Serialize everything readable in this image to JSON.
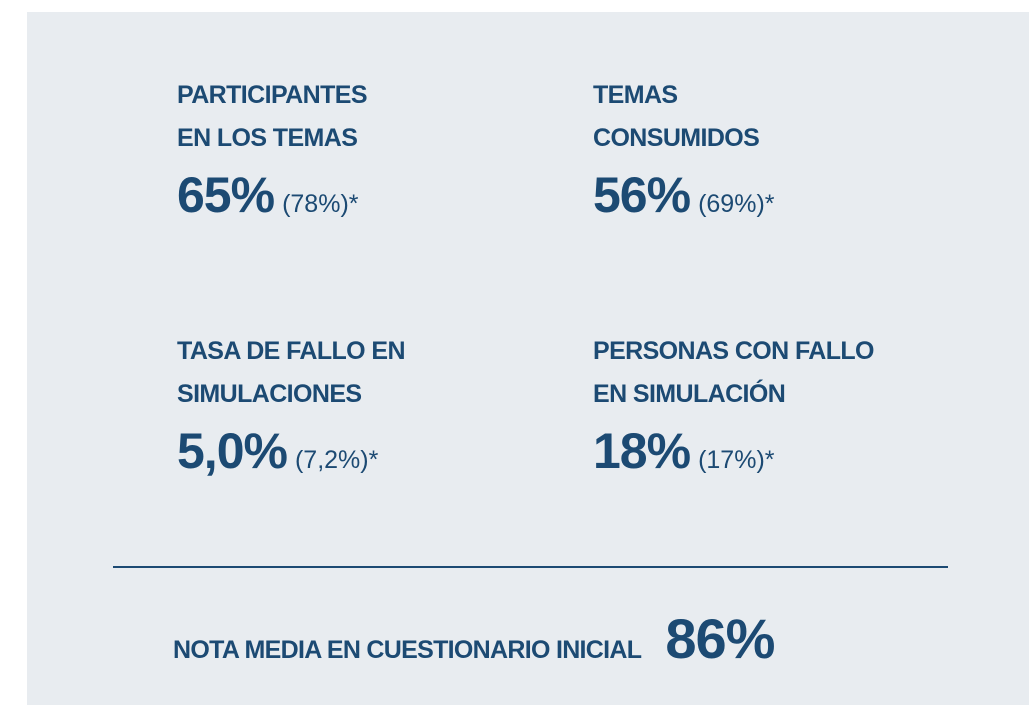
{
  "metrics": [
    {
      "label": [
        "PARTICIPANTES",
        "EN LOS TEMAS"
      ],
      "value": "65%",
      "comparison": "(78%)*"
    },
    {
      "label": [
        "TEMAS",
        "CONSUMIDOS"
      ],
      "value": "56%",
      "comparison": "(69%)*"
    },
    {
      "label": [
        "TASA DE FALLO EN",
        "SIMULACIONES"
      ],
      "value": "5,0%",
      "comparison": "(7,2%)*"
    },
    {
      "label": [
        "PERSONAS CON FALLO",
        "EN SIMULACIÓN"
      ],
      "value": "18%",
      "comparison": "(17%)*"
    }
  ],
  "summary": {
    "label": "NOTA MEDIA EN CUESTIONARIO INICIAL",
    "value": "86%"
  }
}
